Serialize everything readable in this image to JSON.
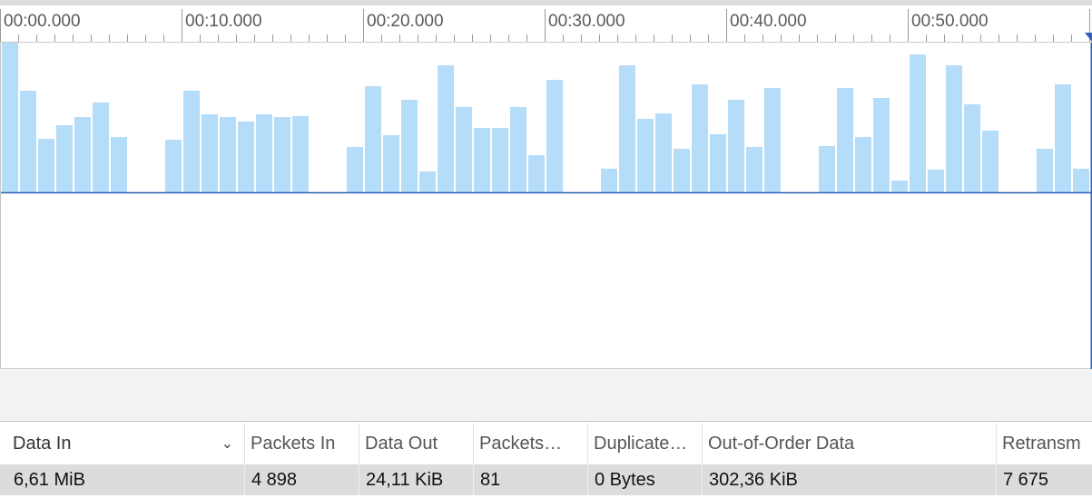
{
  "timeline": {
    "labels": [
      "00:00.000",
      "00:10.000",
      "00:20.000",
      "00:30.000",
      "00:40.000",
      "00:50.000"
    ]
  },
  "graph": {
    "bar_color": "#b5dcf8",
    "baseline_color": "#2f5fb5",
    "bars": [
      [
        0,
        1.0
      ],
      [
        1,
        0.68
      ],
      [
        2,
        0.36
      ],
      [
        3,
        0.45
      ],
      [
        4,
        0.5
      ],
      [
        5,
        0.6
      ],
      [
        6,
        0.37
      ],
      [
        9,
        0.35
      ],
      [
        10,
        0.68
      ],
      [
        11,
        0.52
      ],
      [
        12,
        0.5
      ],
      [
        13,
        0.47
      ],
      [
        14,
        0.52
      ],
      [
        15,
        0.5
      ],
      [
        16,
        0.51
      ],
      [
        19,
        0.3
      ],
      [
        20,
        0.71
      ],
      [
        21,
        0.38
      ],
      [
        22,
        0.62
      ],
      [
        23,
        0.14
      ],
      [
        24,
        0.85
      ],
      [
        25,
        0.57
      ],
      [
        26,
        0.43
      ],
      [
        27,
        0.43
      ],
      [
        28,
        0.57
      ],
      [
        29,
        0.25
      ],
      [
        30,
        0.75
      ],
      [
        33,
        0.16
      ],
      [
        34,
        0.85
      ],
      [
        35,
        0.49
      ],
      [
        36,
        0.53
      ],
      [
        37,
        0.29
      ],
      [
        38,
        0.72
      ],
      [
        39,
        0.39
      ],
      [
        40,
        0.62
      ],
      [
        41,
        0.3
      ],
      [
        42,
        0.7
      ],
      [
        45,
        0.31
      ],
      [
        46,
        0.7
      ],
      [
        47,
        0.37
      ],
      [
        48,
        0.63
      ],
      [
        49,
        0.08
      ],
      [
        50,
        0.92
      ],
      [
        51,
        0.15
      ],
      [
        52,
        0.85
      ],
      [
        53,
        0.59
      ],
      [
        54,
        0.41
      ],
      [
        57,
        0.29
      ],
      [
        58,
        0.72
      ],
      [
        59,
        0.16
      ]
    ]
  },
  "table": {
    "columns": [
      {
        "key": "data_in",
        "label": "Data In"
      },
      {
        "key": "packets_in",
        "label": "Packets In"
      },
      {
        "key": "data_out",
        "label": "Data Out"
      },
      {
        "key": "packets_out",
        "label": "Packets…"
      },
      {
        "key": "duplicate",
        "label": "Duplicate…"
      },
      {
        "key": "out_of_order",
        "label": "Out-of-Order Data"
      },
      {
        "key": "retransmitted",
        "label": "Retransm"
      }
    ],
    "sort_icon": "chevron-down-icon",
    "row": {
      "data_in": "6,61 MiB",
      "packets_in": "4 898",
      "data_out": "24,11 KiB",
      "packets_out": "81",
      "duplicate": "0 Bytes",
      "out_of_order": "302,36 KiB",
      "retransmitted": "7 675"
    }
  }
}
